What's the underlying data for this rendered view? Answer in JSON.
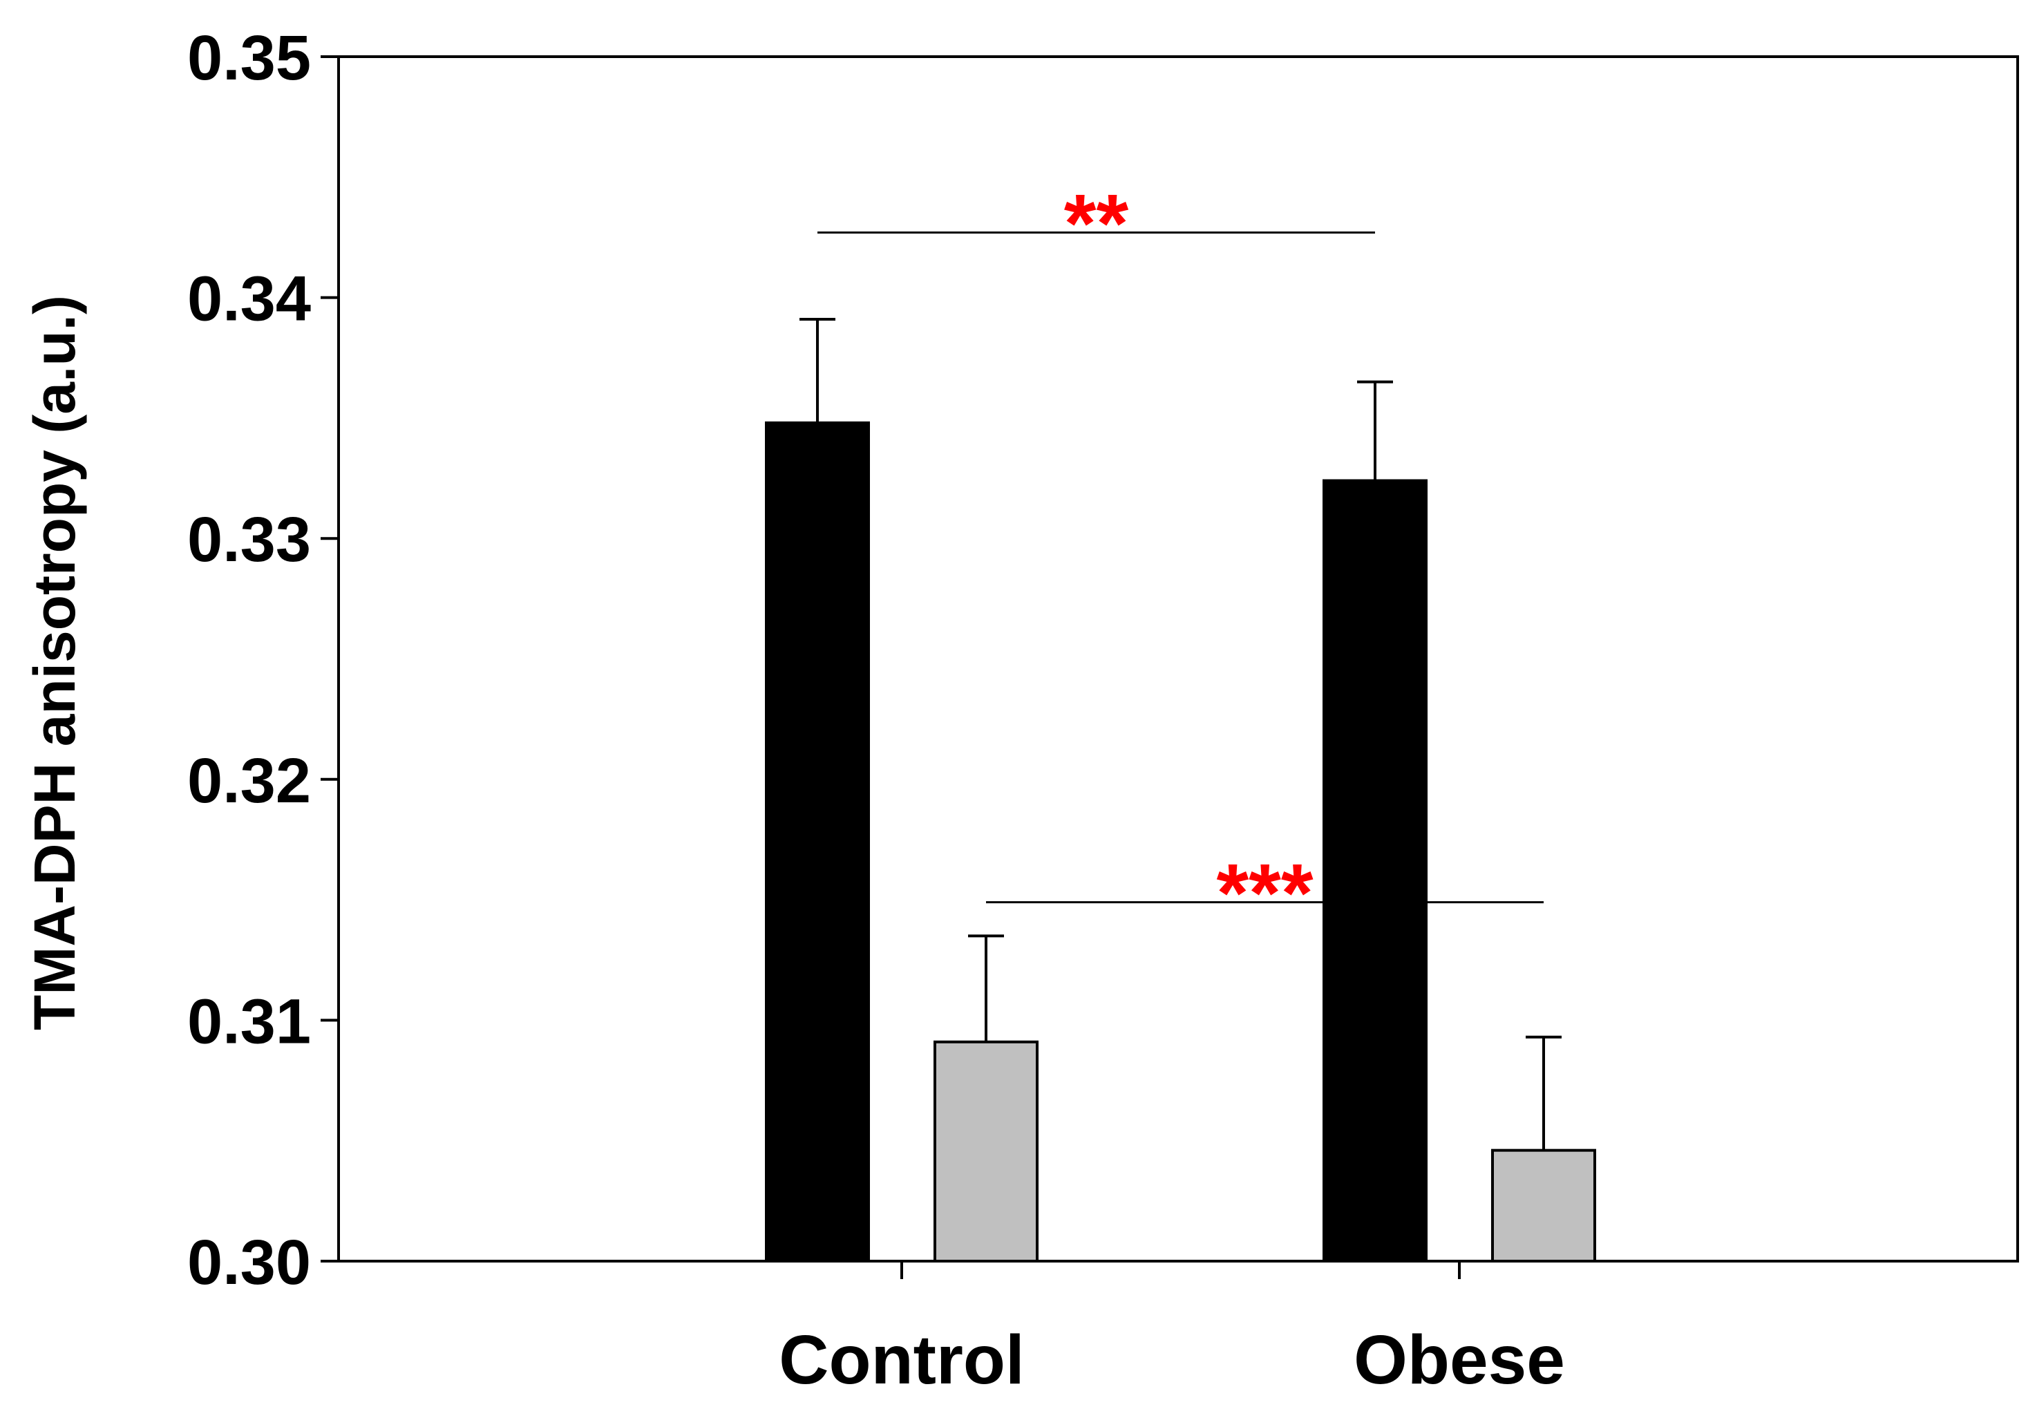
{
  "chart_data": {
    "type": "bar",
    "title": "",
    "xlabel": "",
    "ylabel": "TMA-DPH anisotropy (a.u.)",
    "ylim": [
      0.3,
      0.35
    ],
    "yticks": [
      0.3,
      0.31,
      0.32,
      0.33,
      0.34,
      0.35
    ],
    "ytick_labels": [
      "0.30",
      "0.31",
      "0.32",
      "0.33",
      "0.34",
      "0.35"
    ],
    "categories": [
      "Control",
      "Obese"
    ],
    "grid": false,
    "series": [
      {
        "name": "series-1",
        "color": "#000000",
        "values": [
          0.3348,
          0.3324
        ],
        "errors": [
          0.0043,
          0.0041
        ]
      },
      {
        "name": "series-2",
        "color": "#c0c0c0",
        "values": [
          0.3091,
          0.3046
        ],
        "errors": [
          0.0044,
          0.0047
        ]
      }
    ],
    "significance": [
      {
        "label": "**",
        "color": "#ff0000",
        "from": {
          "category": 0,
          "series": 0
        },
        "to": {
          "category": 1,
          "series": 0
        },
        "y": 0.3427
      },
      {
        "label": "***",
        "color": "#ff0000",
        "from": {
          "category": 0,
          "series": 1
        },
        "to": {
          "category": 1,
          "series": 1
        },
        "y": 0.3149
      }
    ]
  }
}
